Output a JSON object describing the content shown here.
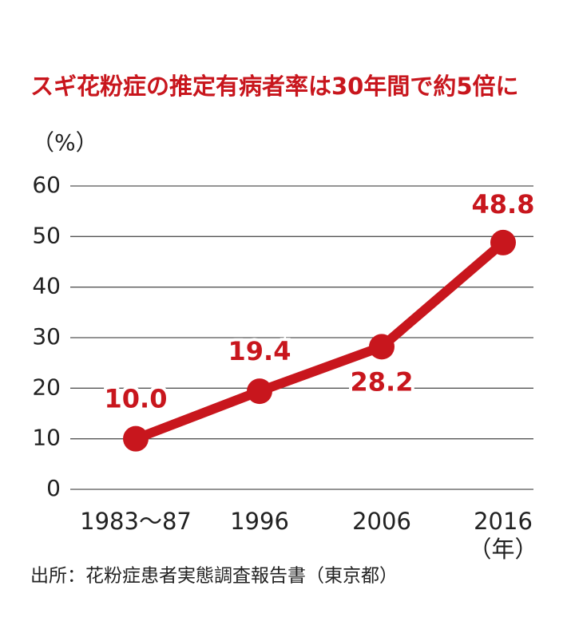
{
  "chart_data": {
    "type": "line",
    "title": "スギ花粉症の推定有病者率は30年間で約5倍に",
    "y_label": "（%）",
    "x_label": "（年）",
    "source": "出所：花粉症患者実態調査報告書（東京都）",
    "categories": [
      "1983〜87",
      "1996",
      "2006",
      "2016"
    ],
    "values": [
      10.0,
      19.4,
      28.2,
      48.8
    ],
    "value_labels": [
      "10.0",
      "19.4",
      "28.2",
      "48.8"
    ],
    "color": "#c8161d",
    "ylim": [
      0,
      60
    ],
    "yticks": [
      0,
      10,
      20,
      30,
      40,
      50,
      60
    ],
    "grid": true
  }
}
